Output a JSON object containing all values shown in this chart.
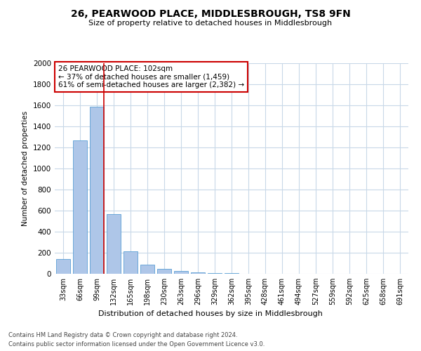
{
  "title1": "26, PEARWOOD PLACE, MIDDLESBROUGH, TS8 9FN",
  "title2": "Size of property relative to detached houses in Middlesbrough",
  "xlabel": "Distribution of detached houses by size in Middlesbrough",
  "ylabel": "Number of detached properties",
  "footer1": "Contains HM Land Registry data © Crown copyright and database right 2024.",
  "footer2": "Contains public sector information licensed under the Open Government Licence v3.0.",
  "annotation_title": "26 PEARWOOD PLACE: 102sqm",
  "annotation_line1": "← 37% of detached houses are smaller (1,459)",
  "annotation_line2": "61% of semi-detached houses are larger (2,382) →",
  "property_size": 102,
  "bar_labels": [
    "33sqm",
    "66sqm",
    "99sqm",
    "132sqm",
    "165sqm",
    "198sqm",
    "230sqm",
    "263sqm",
    "296sqm",
    "329sqm",
    "362sqm",
    "395sqm",
    "428sqm",
    "461sqm",
    "494sqm",
    "527sqm",
    "559sqm",
    "592sqm",
    "625sqm",
    "658sqm",
    "691sqm"
  ],
  "bar_values": [
    140,
    1270,
    1590,
    565,
    215,
    90,
    45,
    25,
    15,
    10,
    5,
    3,
    2,
    0,
    0,
    0,
    0,
    0,
    0,
    0,
    0
  ],
  "bar_color": "#aec6e8",
  "bar_edge_color": "#5a9fd4",
  "red_line_color": "#cc0000",
  "annotation_box_color": "#cc0000",
  "background_color": "#ffffff",
  "grid_color": "#c8d8e8",
  "ylim": [
    0,
    2000
  ],
  "yticks": [
    0,
    200,
    400,
    600,
    800,
    1000,
    1200,
    1400,
    1600,
    1800,
    2000
  ]
}
